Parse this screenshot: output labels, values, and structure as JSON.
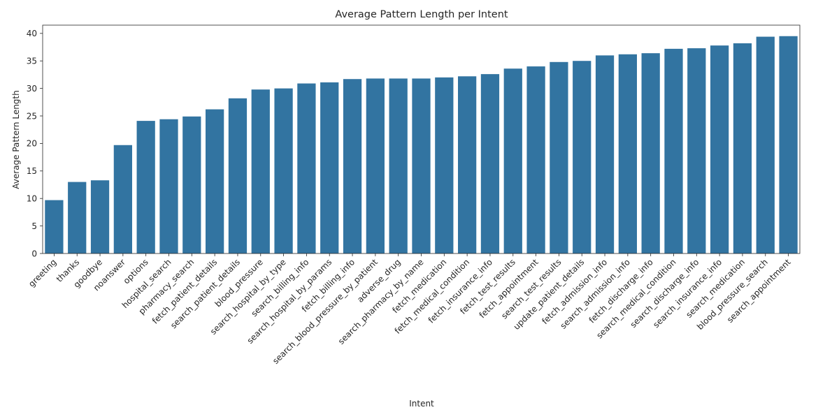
{
  "chart_data": {
    "type": "bar",
    "title": "Average Pattern Length per Intent",
    "xlabel": "Intent",
    "ylabel": "Average Pattern Length",
    "ylim": [
      0,
      41.5
    ],
    "yticks": [
      0,
      5,
      10,
      15,
      20,
      25,
      30,
      35,
      40
    ],
    "grid": false,
    "bar_color": "#3274a1",
    "categories": [
      "greeting",
      "thanks",
      "goodbye",
      "noanswer",
      "options",
      "hospital_search",
      "pharmacy_search",
      "fetch_patient_details",
      "search_patient_details",
      "blood_pressure",
      "search_hospital_by_type",
      "search_billing_info",
      "search_hospital_by_params",
      "fetch_billing_info",
      "search_blood_pressure_by_patient",
      "adverse_drug",
      "search_pharmacy_by_name",
      "fetch_medication",
      "fetch_medical_condition",
      "fetch_insurance_info",
      "fetch_test_results",
      "fetch_appointment",
      "search_test_results",
      "update_patient_details",
      "fetch_admission_info",
      "search_admission_info",
      "fetch_discharge_info",
      "search_medical_condition",
      "search_discharge_info",
      "search_insurance_info",
      "search_medication",
      "blood_pressure_search",
      "search_appointment"
    ],
    "values": [
      9.7,
      13.0,
      13.3,
      19.7,
      24.1,
      24.4,
      24.9,
      26.2,
      28.2,
      29.8,
      30.0,
      30.9,
      31.1,
      31.7,
      31.8,
      31.8,
      31.8,
      32.0,
      32.2,
      32.6,
      33.6,
      34.0,
      34.8,
      35.0,
      36.0,
      36.2,
      36.4,
      37.2,
      37.3,
      37.8,
      38.2,
      39.4,
      39.5
    ]
  }
}
